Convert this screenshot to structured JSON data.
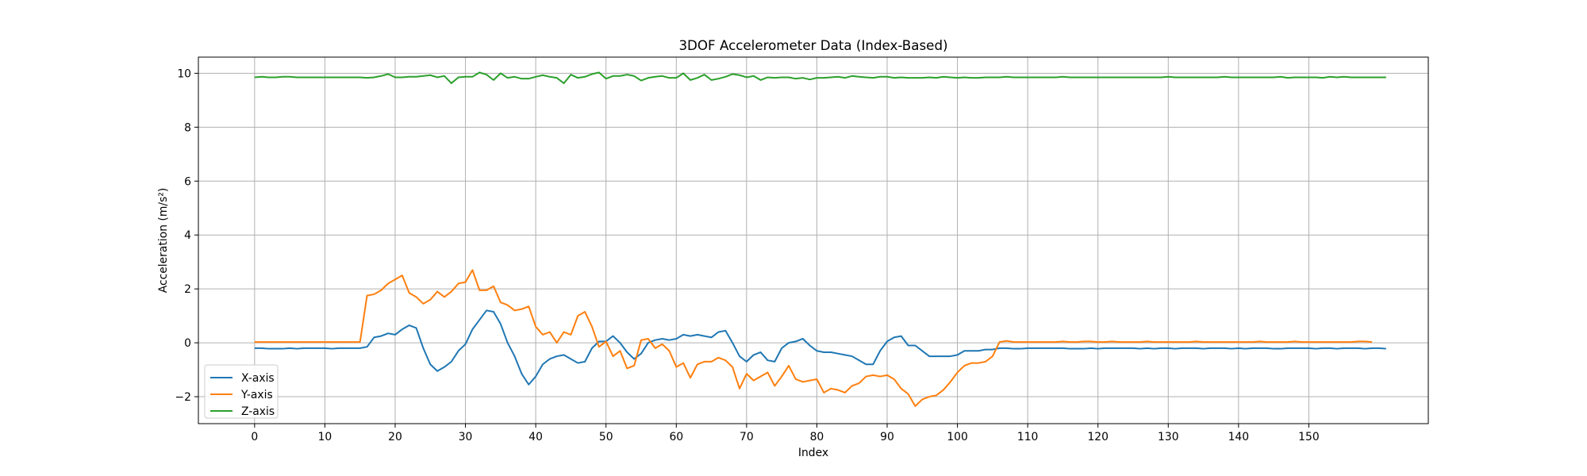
{
  "chart_data": {
    "type": "line",
    "title": "3DOF Accelerometer Data (Index-Based)",
    "xlabel": "Index",
    "ylabel": "Acceleration (m/s²)",
    "xlim": [
      -8,
      167
    ],
    "ylim": [
      -3,
      10.6
    ],
    "xticks": [
      0,
      10,
      20,
      30,
      40,
      50,
      60,
      70,
      80,
      90,
      100,
      110,
      120,
      130,
      140,
      150
    ],
    "yticks": [
      -2,
      0,
      2,
      4,
      6,
      8,
      10
    ],
    "grid": true,
    "legend_position": "lower-left",
    "series": [
      {
        "name": "X-axis",
        "color": "#1f77b4",
        "values": [
          -0.2,
          -0.2,
          -0.22,
          -0.22,
          -0.22,
          -0.2,
          -0.22,
          -0.2,
          -0.2,
          -0.2,
          -0.2,
          -0.22,
          -0.2,
          -0.2,
          -0.2,
          -0.2,
          -0.15,
          0.2,
          0.25,
          0.35,
          0.3,
          0.5,
          0.65,
          0.55,
          -0.2,
          -0.8,
          -1.05,
          -0.9,
          -0.7,
          -0.3,
          -0.05,
          0.5,
          0.85,
          1.2,
          1.15,
          0.7,
          0.0,
          -0.5,
          -1.15,
          -1.55,
          -1.25,
          -0.8,
          -0.6,
          -0.5,
          -0.45,
          -0.6,
          -0.75,
          -0.7,
          -0.2,
          0.05,
          0.05,
          0.25,
          0.0,
          -0.35,
          -0.6,
          -0.4,
          0.0,
          0.1,
          0.15,
          0.1,
          0.15,
          0.3,
          0.25,
          0.3,
          0.25,
          0.2,
          0.4,
          0.45,
          0.0,
          -0.5,
          -0.7,
          -0.45,
          -0.35,
          -0.65,
          -0.7,
          -0.2,
          0.0,
          0.05,
          0.15,
          -0.1,
          -0.3,
          -0.35,
          -0.35,
          -0.4,
          -0.45,
          -0.5,
          -0.65,
          -0.8,
          -0.8,
          -0.3,
          0.05,
          0.2,
          0.25,
          -0.1,
          -0.1,
          -0.3,
          -0.5,
          -0.5,
          -0.5,
          -0.5,
          -0.45,
          -0.3,
          -0.3,
          -0.3,
          -0.25,
          -0.25,
          -0.2,
          -0.2,
          -0.22,
          -0.22,
          -0.2,
          -0.2,
          -0.2,
          -0.2,
          -0.2,
          -0.2,
          -0.22,
          -0.22,
          -0.22,
          -0.2,
          -0.22,
          -0.2,
          -0.2,
          -0.2,
          -0.2,
          -0.2,
          -0.22,
          -0.2,
          -0.22,
          -0.2,
          -0.2,
          -0.22,
          -0.2,
          -0.2,
          -0.2,
          -0.22,
          -0.2,
          -0.2,
          -0.2,
          -0.22,
          -0.2,
          -0.22,
          -0.2,
          -0.2,
          -0.2,
          -0.22,
          -0.22,
          -0.2,
          -0.2,
          -0.2,
          -0.2,
          -0.22,
          -0.2,
          -0.2,
          -0.22,
          -0.2,
          -0.2,
          -0.2,
          -0.22,
          -0.2,
          -0.2,
          -0.22
        ]
      },
      {
        "name": "Y-axis",
        "color": "#ff7f0e",
        "values": [
          0.03,
          0.03,
          0.03,
          0.03,
          0.03,
          0.03,
          0.03,
          0.03,
          0.03,
          0.03,
          0.03,
          0.03,
          0.03,
          0.03,
          0.03,
          0.03,
          1.75,
          1.8,
          1.95,
          2.2,
          2.35,
          2.5,
          1.85,
          1.7,
          1.45,
          1.6,
          1.9,
          1.7,
          1.9,
          2.2,
          2.25,
          2.7,
          1.95,
          1.95,
          2.1,
          1.5,
          1.4,
          1.2,
          1.25,
          1.35,
          0.6,
          0.3,
          0.4,
          0.0,
          0.4,
          0.3,
          1.0,
          1.15,
          0.6,
          -0.15,
          0.05,
          -0.5,
          -0.3,
          -0.95,
          -0.85,
          0.1,
          0.15,
          -0.2,
          -0.05,
          -0.3,
          -0.9,
          -0.75,
          -1.3,
          -0.8,
          -0.7,
          -0.7,
          -0.55,
          -0.65,
          -0.9,
          -1.7,
          -1.15,
          -1.4,
          -1.25,
          -1.1,
          -1.6,
          -1.25,
          -0.85,
          -1.35,
          -1.45,
          -1.4,
          -1.35,
          -1.85,
          -1.7,
          -1.75,
          -1.85,
          -1.6,
          -1.5,
          -1.25,
          -1.2,
          -1.25,
          -1.2,
          -1.35,
          -1.7,
          -1.9,
          -2.35,
          -2.1,
          -2.0,
          -1.95,
          -1.75,
          -1.45,
          -1.1,
          -0.85,
          -0.75,
          -0.75,
          -0.7,
          -0.5,
          0.03,
          0.07,
          0.03,
          0.03,
          0.03,
          0.03,
          0.03,
          0.03,
          0.03,
          0.05,
          0.03,
          0.03,
          0.05,
          0.05,
          0.03,
          0.03,
          0.05,
          0.03,
          0.03,
          0.03,
          0.03,
          0.05,
          0.03,
          0.03,
          0.03,
          0.03,
          0.03,
          0.03,
          0.05,
          0.03,
          0.03,
          0.03,
          0.03,
          0.03,
          0.03,
          0.03,
          0.03,
          0.05,
          0.03,
          0.03,
          0.03,
          0.03,
          0.05,
          0.03,
          0.03,
          0.03,
          0.03,
          0.03,
          0.03,
          0.03,
          0.03,
          0.05,
          0.05,
          0.03
        ]
      },
      {
        "name": "Z-axis",
        "color": "#2ca02c",
        "values": [
          9.85,
          9.87,
          9.85,
          9.85,
          9.87,
          9.87,
          9.85,
          9.85,
          9.85,
          9.85,
          9.85,
          9.85,
          9.85,
          9.85,
          9.85,
          9.85,
          9.83,
          9.85,
          9.9,
          9.97,
          9.85,
          9.85,
          9.87,
          9.87,
          9.9,
          9.93,
          9.85,
          9.9,
          9.63,
          9.85,
          9.87,
          9.87,
          10.03,
          9.95,
          9.75,
          10.0,
          9.83,
          9.87,
          9.8,
          9.8,
          9.87,
          9.93,
          9.87,
          9.83,
          9.63,
          9.95,
          9.83,
          9.87,
          9.97,
          10.03,
          9.8,
          9.9,
          9.9,
          9.95,
          9.9,
          9.73,
          9.83,
          9.87,
          9.9,
          9.83,
          9.83,
          10.0,
          9.75,
          9.83,
          9.95,
          9.75,
          9.8,
          9.87,
          9.97,
          9.93,
          9.85,
          9.9,
          9.75,
          9.85,
          9.83,
          9.85,
          9.85,
          9.8,
          9.83,
          9.77,
          9.83,
          9.83,
          9.85,
          9.87,
          9.83,
          9.9,
          9.87,
          9.85,
          9.83,
          9.87,
          9.87,
          9.83,
          9.85,
          9.83,
          9.83,
          9.83,
          9.85,
          9.83,
          9.87,
          9.85,
          9.83,
          9.85,
          9.83,
          9.83,
          9.85,
          9.85,
          9.85,
          9.87,
          9.85,
          9.85,
          9.85,
          9.85,
          9.85,
          9.85,
          9.85,
          9.87,
          9.85,
          9.85,
          9.85,
          9.85,
          9.85,
          9.85,
          9.85,
          9.85,
          9.85,
          9.85,
          9.85,
          9.85,
          9.85,
          9.85,
          9.87,
          9.85,
          9.85,
          9.85,
          9.85,
          9.85,
          9.85,
          9.85,
          9.87,
          9.85,
          9.85,
          9.85,
          9.85,
          9.85,
          9.85,
          9.85,
          9.87,
          9.83,
          9.85,
          9.85,
          9.85,
          9.85,
          9.83,
          9.87,
          9.85,
          9.87,
          9.85,
          9.85,
          9.85,
          9.85,
          9.85,
          9.85
        ]
      }
    ]
  }
}
